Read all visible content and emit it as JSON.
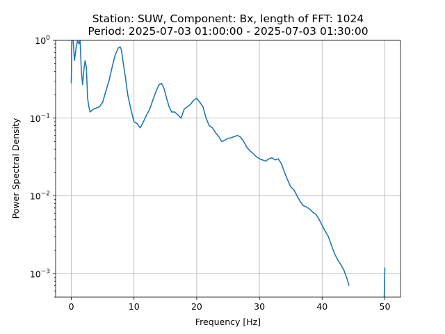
{
  "chart_data": {
    "type": "line",
    "title_line1": "Station: SUW, Component: Bx, length of FFT: 1024",
    "title_line2": "Period: 2025-07-03 01:00:00 - 2025-07-03 01:30:00",
    "xlabel": "Frequency [Hz]",
    "ylabel": "Power Spectral Density",
    "xlim": [
      -2.5,
      52.5
    ],
    "ylim": [
      0.0005,
      1
    ],
    "yscale": "log",
    "grid": true,
    "color": "#1f77b4",
    "xticks": [
      {
        "value": 0,
        "label": "0"
      },
      {
        "value": 10,
        "label": "10"
      },
      {
        "value": 20,
        "label": "20"
      },
      {
        "value": 30,
        "label": "30"
      },
      {
        "value": 40,
        "label": "40"
      },
      {
        "value": 50,
        "label": "50"
      }
    ],
    "yticks": [
      {
        "value": 1,
        "base": "10",
        "exp": "0"
      },
      {
        "value": 0.1,
        "base": "10",
        "exp": "−1"
      },
      {
        "value": 0.01,
        "base": "10",
        "exp": "−2"
      },
      {
        "value": 0.001,
        "base": "10",
        "exp": "−3"
      }
    ],
    "series": [
      {
        "x": [
          0,
          0.1,
          0.3,
          0.5,
          0.8,
          1.0,
          1.2,
          1.4,
          1.6,
          1.8,
          2.0,
          2.2,
          2.4,
          2.6,
          2.8,
          3.0,
          3.5,
          4.0,
          4.5,
          5.0,
          5.5,
          6.0,
          6.5,
          7.0,
          7.5,
          7.8,
          8.0,
          8.3,
          8.6,
          9.0,
          9.5,
          10.0,
          10.5,
          11.0,
          11.5,
          12.0,
          12.5,
          13.0,
          13.5,
          14.0,
          14.4,
          14.8,
          15.2,
          15.6,
          16.0,
          16.5,
          17.0,
          17.5,
          18.0,
          18.5,
          19.0,
          19.5,
          20.0,
          20.5,
          21.0,
          21.5,
          22.0,
          22.5,
          23.0,
          23.5,
          24.0,
          24.5,
          25.0,
          25.5,
          26.0,
          26.5,
          27.0,
          27.5,
          28.0,
          28.5,
          29.0,
          29.5,
          30.0,
          30.5,
          31.0,
          31.5,
          32.0,
          32.5,
          33.0,
          33.5,
          34.0,
          34.5,
          35.0,
          35.5,
          36.0,
          36.5,
          37.0,
          37.5,
          38.0,
          38.5,
          39.0,
          39.5,
          40.0,
          40.5,
          41.0,
          41.5,
          42.0,
          42.5,
          43.0,
          43.5,
          44.0,
          44.3
        ],
        "y": [
          0.28,
          1.0,
          1.0,
          0.55,
          0.85,
          1.0,
          0.9,
          1.0,
          0.4,
          0.27,
          0.42,
          0.55,
          0.45,
          0.18,
          0.14,
          0.12,
          0.13,
          0.135,
          0.14,
          0.16,
          0.22,
          0.3,
          0.45,
          0.65,
          0.8,
          0.82,
          0.75,
          0.5,
          0.35,
          0.2,
          0.13,
          0.09,
          0.085,
          0.075,
          0.09,
          0.11,
          0.13,
          0.17,
          0.22,
          0.27,
          0.28,
          0.24,
          0.18,
          0.14,
          0.12,
          0.12,
          0.11,
          0.1,
          0.13,
          0.14,
          0.15,
          0.17,
          0.18,
          0.16,
          0.14,
          0.1,
          0.08,
          0.075,
          0.065,
          0.058,
          0.05,
          0.052,
          0.055,
          0.056,
          0.058,
          0.06,
          0.057,
          0.05,
          0.042,
          0.038,
          0.035,
          0.032,
          0.03,
          0.029,
          0.028,
          0.03,
          0.031,
          0.029,
          0.03,
          0.026,
          0.02,
          0.016,
          0.013,
          0.012,
          0.01,
          0.0085,
          0.0075,
          0.0072,
          0.0068,
          0.0062,
          0.0058,
          0.005,
          0.0042,
          0.0035,
          0.003,
          0.0023,
          0.0018,
          0.0015,
          0.0013,
          0.0011,
          0.00085,
          0.0007
        ]
      },
      {
        "x": [
          49.9,
          50.0
        ],
        "y": [
          0.0005,
          0.0012
        ]
      }
    ]
  }
}
